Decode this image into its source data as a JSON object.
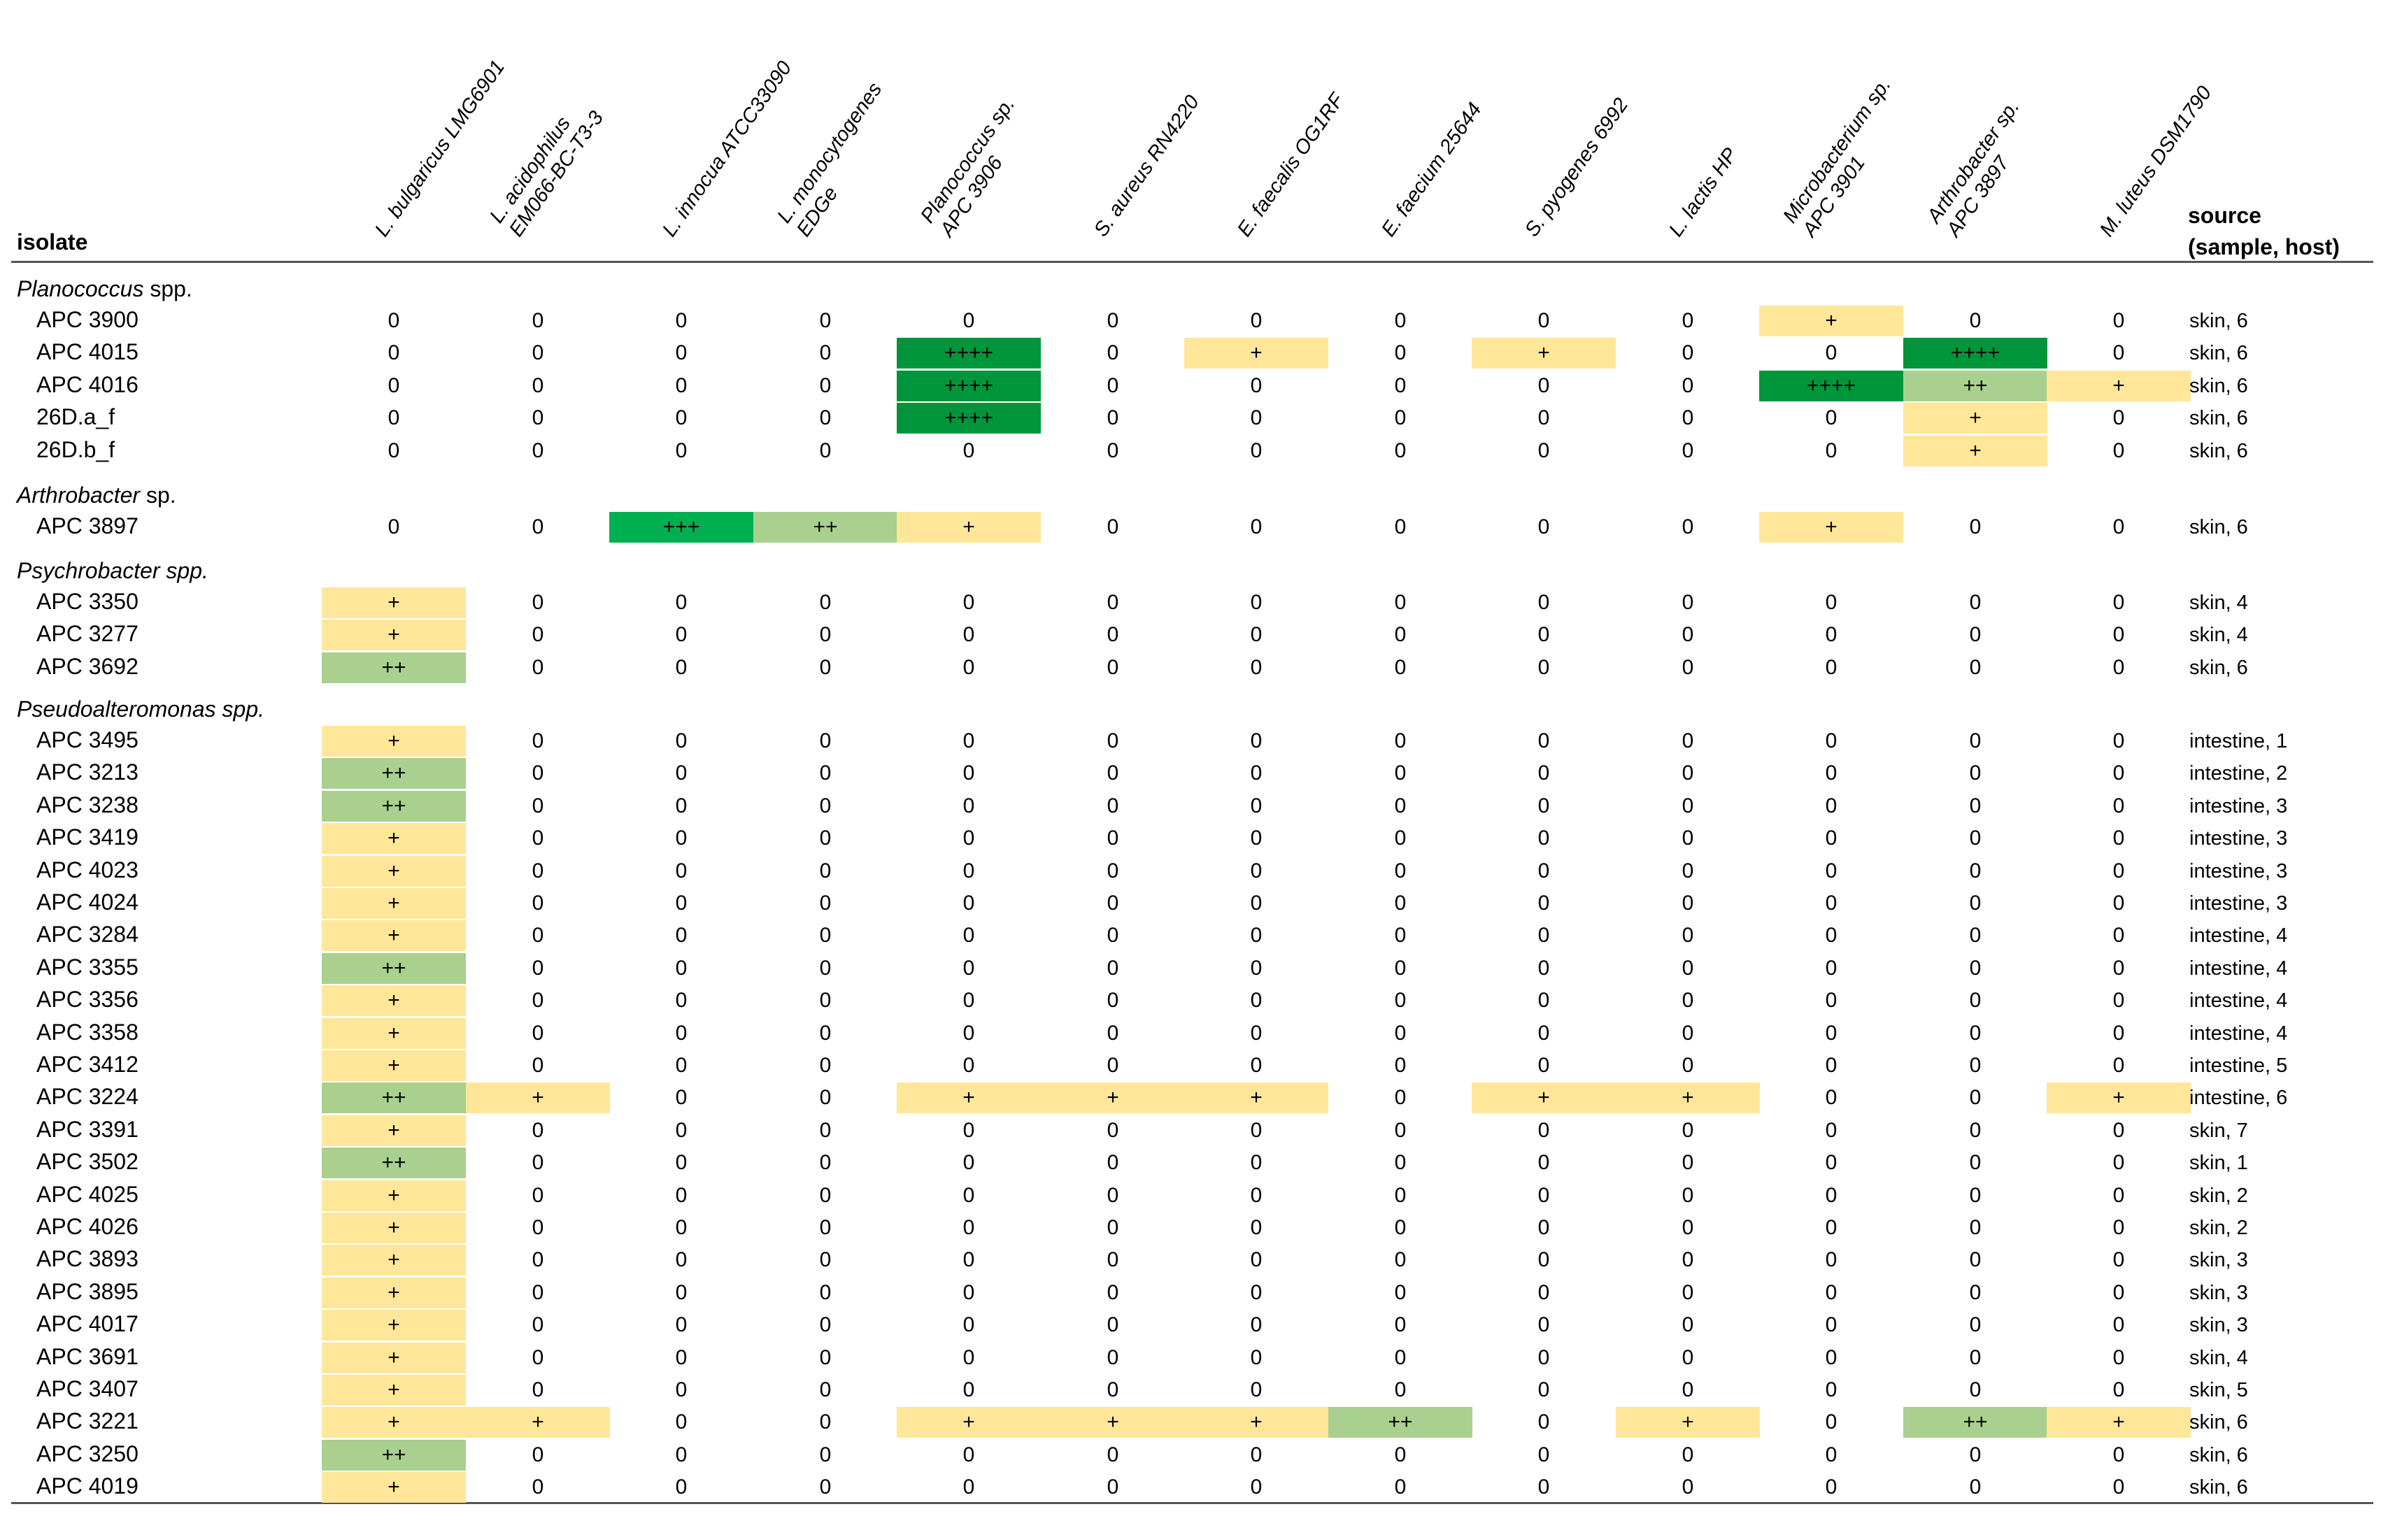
{
  "headers": {
    "isolate": "isolate",
    "source_line1": "source",
    "source_line2": "(sample, host)",
    "columns": [
      [
        "L. bulgaricus LMG6901"
      ],
      [
        "L. acidophilus",
        "EM066-BC-T3-3"
      ],
      [
        "L. innocua ATCC33090"
      ],
      [
        "L. monocytogenes",
        "EDGe"
      ],
      [
        "Planococcus sp.",
        "APC 3906"
      ],
      [
        "S. aureus RN4220"
      ],
      [
        "E. faecalis OG1RF"
      ],
      [
        "E. faecium 25644"
      ],
      [
        "S. pyogenes 6992"
      ],
      [
        "L. lactis HP"
      ],
      [
        "Microbacterium sp.",
        "APC 3901"
      ],
      [
        "Arthrobacter sp.",
        "APC 3897"
      ],
      [
        "M. luteus DSM1790"
      ]
    ]
  },
  "colors": {
    "weak": "#FFE699",
    "medium": "#A9D08E",
    "strong": "#00B050",
    "very_strong": "#00953A"
  },
  "groups": [
    {
      "name": "Planococcus",
      "suffix": " spp.",
      "rows": [
        {
          "isolate": "APC 3900",
          "values": [
            "0",
            "0",
            "0",
            "0",
            "0",
            "0",
            "0",
            "0",
            "0",
            "0",
            "+",
            "0",
            "0"
          ],
          "source": "skin, 6"
        },
        {
          "isolate": "APC 4015",
          "values": [
            "0",
            "0",
            "0",
            "0",
            "++++",
            "0",
            "+",
            "0",
            "+",
            "0",
            "0",
            "++++",
            "0"
          ],
          "source": "skin, 6"
        },
        {
          "isolate": "APC 4016",
          "values": [
            "0",
            "0",
            "0",
            "0",
            "++++",
            "0",
            "0",
            "0",
            "0",
            "0",
            "++++",
            "++",
            "+"
          ],
          "source": "skin, 6"
        },
        {
          "isolate": "26D.a_f",
          "values": [
            "0",
            "0",
            "0",
            "0",
            "++++",
            "0",
            "0",
            "0",
            "0",
            "0",
            "0",
            "+",
            "0"
          ],
          "source": "skin, 6"
        },
        {
          "isolate": "26D.b_f",
          "values": [
            "0",
            "0",
            "0",
            "0",
            "0",
            "0",
            "0",
            "0",
            "0",
            "0",
            "0",
            "+",
            "0"
          ],
          "source": "skin, 6"
        }
      ]
    },
    {
      "name": "Arthrobacter",
      "suffix": " sp.",
      "rows": [
        {
          "isolate": "APC 3897",
          "values": [
            "0",
            "0",
            "+++",
            "++",
            "+",
            "0",
            "0",
            "0",
            "0",
            "0",
            "+",
            "0",
            "0"
          ],
          "source": "skin, 6"
        }
      ]
    },
    {
      "name": "Psychrobacter spp.",
      "suffix": "",
      "rows": [
        {
          "isolate": "APC 3350",
          "values": [
            "+",
            "0",
            "0",
            "0",
            "0",
            "0",
            "0",
            "0",
            "0",
            "0",
            "0",
            "0",
            "0"
          ],
          "source": "skin, 4"
        },
        {
          "isolate": "APC 3277",
          "values": [
            "+",
            "0",
            "0",
            "0",
            "0",
            "0",
            "0",
            "0",
            "0",
            "0",
            "0",
            "0",
            "0"
          ],
          "source": "skin, 4"
        },
        {
          "isolate": "APC 3692",
          "values": [
            "++",
            "0",
            "0",
            "0",
            "0",
            "0",
            "0",
            "0",
            "0",
            "0",
            "0",
            "0",
            "0"
          ],
          "source": "skin, 6"
        }
      ]
    },
    {
      "name": "Pseudoalteromonas spp.",
      "suffix": "",
      "rows": [
        {
          "isolate": "APC 3495",
          "values": [
            "+",
            "0",
            "0",
            "0",
            "0",
            "0",
            "0",
            "0",
            "0",
            "0",
            "0",
            "0",
            "0"
          ],
          "source": "intestine, 1"
        },
        {
          "isolate": "APC 3213",
          "values": [
            "++",
            "0",
            "0",
            "0",
            "0",
            "0",
            "0",
            "0",
            "0",
            "0",
            "0",
            "0",
            "0"
          ],
          "source": "intestine, 2"
        },
        {
          "isolate": "APC 3238",
          "values": [
            "++",
            "0",
            "0",
            "0",
            "0",
            "0",
            "0",
            "0",
            "0",
            "0",
            "0",
            "0",
            "0"
          ],
          "source": "intestine, 3"
        },
        {
          "isolate": "APC 3419",
          "values": [
            "+",
            "0",
            "0",
            "0",
            "0",
            "0",
            "0",
            "0",
            "0",
            "0",
            "0",
            "0",
            "0"
          ],
          "source": "intestine, 3"
        },
        {
          "isolate": "APC 4023",
          "values": [
            "+",
            "0",
            "0",
            "0",
            "0",
            "0",
            "0",
            "0",
            "0",
            "0",
            "0",
            "0",
            "0"
          ],
          "source": "intestine, 3"
        },
        {
          "isolate": "APC 4024",
          "values": [
            "+",
            "0",
            "0",
            "0",
            "0",
            "0",
            "0",
            "0",
            "0",
            "0",
            "0",
            "0",
            "0"
          ],
          "source": "intestine, 3"
        },
        {
          "isolate": "APC 3284",
          "values": [
            "+",
            "0",
            "0",
            "0",
            "0",
            "0",
            "0",
            "0",
            "0",
            "0",
            "0",
            "0",
            "0"
          ],
          "source": "intestine, 4"
        },
        {
          "isolate": "APC 3355",
          "values": [
            "++",
            "0",
            "0",
            "0",
            "0",
            "0",
            "0",
            "0",
            "0",
            "0",
            "0",
            "0",
            "0"
          ],
          "source": "intestine, 4"
        },
        {
          "isolate": "APC 3356",
          "values": [
            "+",
            "0",
            "0",
            "0",
            "0",
            "0",
            "0",
            "0",
            "0",
            "0",
            "0",
            "0",
            "0"
          ],
          "source": "intestine, 4"
        },
        {
          "isolate": "APC 3358",
          "values": [
            "+",
            "0",
            "0",
            "0",
            "0",
            "0",
            "0",
            "0",
            "0",
            "0",
            "0",
            "0",
            "0"
          ],
          "source": "intestine, 4"
        },
        {
          "isolate": "APC 3412",
          "values": [
            "+",
            "0",
            "0",
            "0",
            "0",
            "0",
            "0",
            "0",
            "0",
            "0",
            "0",
            "0",
            "0"
          ],
          "source": "intestine, 5"
        },
        {
          "isolate": "APC 3224",
          "values": [
            "++",
            "+",
            "0",
            "0",
            "+",
            "+",
            "+",
            "0",
            "+",
            "+",
            "0",
            "0",
            "+"
          ],
          "source": "intestine, 6"
        },
        {
          "isolate": "APC 3391",
          "values": [
            "+",
            "0",
            "0",
            "0",
            "0",
            "0",
            "0",
            "0",
            "0",
            "0",
            "0",
            "0",
            "0"
          ],
          "source": "skin, 7"
        },
        {
          "isolate": "APC 3502",
          "values": [
            "++",
            "0",
            "0",
            "0",
            "0",
            "0",
            "0",
            "0",
            "0",
            "0",
            "0",
            "0",
            "0"
          ],
          "source": "skin, 1"
        },
        {
          "isolate": "APC 4025",
          "values": [
            "+",
            "0",
            "0",
            "0",
            "0",
            "0",
            "0",
            "0",
            "0",
            "0",
            "0",
            "0",
            "0"
          ],
          "source": "skin, 2"
        },
        {
          "isolate": "APC 4026",
          "values": [
            "+",
            "0",
            "0",
            "0",
            "0",
            "0",
            "0",
            "0",
            "0",
            "0",
            "0",
            "0",
            "0"
          ],
          "source": "skin, 2"
        },
        {
          "isolate": "APC 3893",
          "values": [
            "+",
            "0",
            "0",
            "0",
            "0",
            "0",
            "0",
            "0",
            "0",
            "0",
            "0",
            "0",
            "0"
          ],
          "source": "skin, 3"
        },
        {
          "isolate": "APC 3895",
          "values": [
            "+",
            "0",
            "0",
            "0",
            "0",
            "0",
            "0",
            "0",
            "0",
            "0",
            "0",
            "0",
            "0"
          ],
          "source": "skin, 3"
        },
        {
          "isolate": "APC 4017",
          "values": [
            "+",
            "0",
            "0",
            "0",
            "0",
            "0",
            "0",
            "0",
            "0",
            "0",
            "0",
            "0",
            "0"
          ],
          "source": "skin, 3"
        },
        {
          "isolate": "APC 3691",
          "values": [
            "+",
            "0",
            "0",
            "0",
            "0",
            "0",
            "0",
            "0",
            "0",
            "0",
            "0",
            "0",
            "0"
          ],
          "source": "skin, 4"
        },
        {
          "isolate": "APC 3407",
          "values": [
            "+",
            "0",
            "0",
            "0",
            "0",
            "0",
            "0",
            "0",
            "0",
            "0",
            "0",
            "0",
            "0"
          ],
          "source": "skin, 5"
        },
        {
          "isolate": "APC 3221",
          "values": [
            "+",
            "+",
            "0",
            "0",
            "+",
            "+",
            "+",
            "++",
            "0",
            "+",
            "0",
            "++",
            "+"
          ],
          "source": "skin, 6"
        },
        {
          "isolate": "APC 3250",
          "values": [
            "++",
            "0",
            "0",
            "0",
            "0",
            "0",
            "0",
            "0",
            "0",
            "0",
            "0",
            "0",
            "0"
          ],
          "source": "skin, 6"
        },
        {
          "isolate": "APC 4019",
          "values": [
            "+",
            "0",
            "0",
            "0",
            "0",
            "0",
            "0",
            "0",
            "0",
            "0",
            "0",
            "0",
            "0"
          ],
          "source": "skin, 6"
        }
      ]
    }
  ]
}
